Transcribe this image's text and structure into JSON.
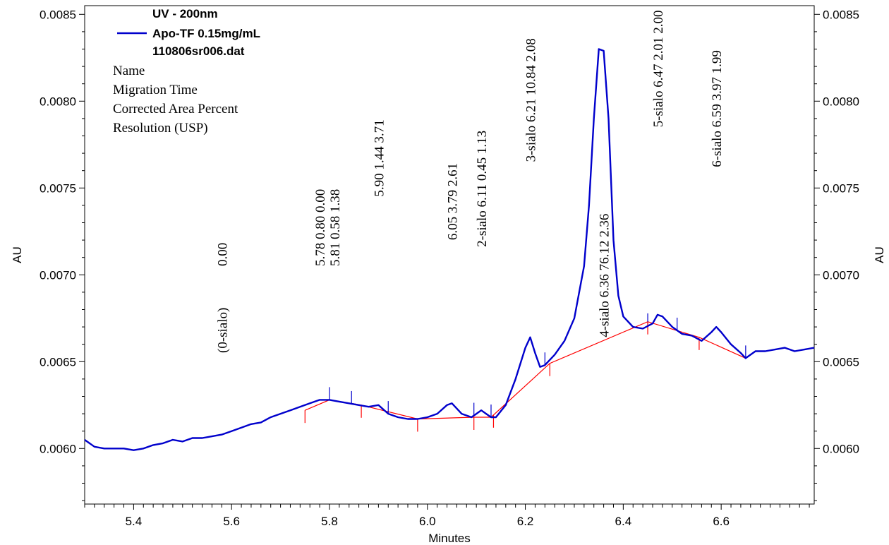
{
  "chart_data": {
    "type": "line",
    "xlabel": "Minutes",
    "ylabel_left": "AU",
    "ylabel_right": "AU",
    "xlim": [
      5.3,
      6.79
    ],
    "ylim": [
      0.00568,
      0.00855
    ],
    "x_ticks": [
      5.4,
      5.6,
      5.8,
      6.0,
      6.2,
      6.4,
      6.6
    ],
    "x_tick_labels": [
      "5.4",
      "5.6",
      "5.8",
      "6.0",
      "6.2",
      "6.4",
      "6.6"
    ],
    "y_ticks": [
      0.006,
      0.0065,
      0.007,
      0.0075,
      0.008,
      0.0085
    ],
    "y_tick_labels": [
      "0.0060",
      "0.0065",
      "0.0070",
      "0.0075",
      "0.0080",
      "0.0085"
    ],
    "legend": {
      "title": "UV - 200nm",
      "series_name": "Apo-TF 0.15mg/mL",
      "file": "110806sr006.dat",
      "fields": [
        "Name",
        "Migration Time",
        "Corrected Area Percent",
        "Resolution (USP)"
      ]
    },
    "series": [
      {
        "name": "Apo-TF 0.15mg/mL",
        "color": "#0000cc",
        "x": [
          5.3,
          5.32,
          5.34,
          5.36,
          5.38,
          5.4,
          5.42,
          5.44,
          5.46,
          5.48,
          5.5,
          5.52,
          5.54,
          5.56,
          5.58,
          5.6,
          5.62,
          5.64,
          5.66,
          5.68,
          5.7,
          5.72,
          5.74,
          5.76,
          5.78,
          5.8,
          5.82,
          5.84,
          5.86,
          5.88,
          5.9,
          5.92,
          5.94,
          5.96,
          5.98,
          6.0,
          6.02,
          6.04,
          6.05,
          6.07,
          6.09,
          6.1,
          6.11,
          6.12,
          6.13,
          6.14,
          6.16,
          6.18,
          6.2,
          6.21,
          6.22,
          6.23,
          6.24,
          6.26,
          6.28,
          6.3,
          6.32,
          6.33,
          6.34,
          6.35,
          6.36,
          6.37,
          6.38,
          6.39,
          6.4,
          6.42,
          6.44,
          6.46,
          6.47,
          6.48,
          6.5,
          6.52,
          6.54,
          6.56,
          6.58,
          6.59,
          6.6,
          6.62,
          6.64,
          6.65,
          6.67,
          6.69,
          6.71,
          6.73,
          6.75,
          6.77,
          6.79
        ],
        "y": [
          0.00605,
          0.00601,
          0.006,
          0.006,
          0.006,
          0.00599,
          0.006,
          0.00602,
          0.00603,
          0.00605,
          0.00604,
          0.00606,
          0.00606,
          0.00607,
          0.00608,
          0.0061,
          0.00612,
          0.00614,
          0.00615,
          0.00618,
          0.0062,
          0.00622,
          0.00624,
          0.00626,
          0.00628,
          0.00628,
          0.00627,
          0.00626,
          0.00625,
          0.00624,
          0.00625,
          0.0062,
          0.00618,
          0.00617,
          0.00617,
          0.00618,
          0.0062,
          0.00625,
          0.00626,
          0.0062,
          0.00618,
          0.0062,
          0.00622,
          0.0062,
          0.00618,
          0.00618,
          0.00625,
          0.0064,
          0.00658,
          0.00664,
          0.00655,
          0.00647,
          0.00648,
          0.00654,
          0.00662,
          0.00675,
          0.00705,
          0.0074,
          0.0079,
          0.0083,
          0.00829,
          0.0079,
          0.0072,
          0.00688,
          0.00676,
          0.0067,
          0.00669,
          0.00672,
          0.00677,
          0.00676,
          0.0067,
          0.00666,
          0.00665,
          0.00662,
          0.00667,
          0.0067,
          0.00667,
          0.0066,
          0.00655,
          0.00652,
          0.00656,
          0.00656,
          0.00657,
          0.00658,
          0.00656,
          0.00657,
          0.00658
        ]
      }
    ],
    "baseline": {
      "color": "#ff0000",
      "x": [
        5.75,
        5.8,
        5.865,
        5.98,
        6.095,
        6.13,
        6.25,
        6.45,
        6.555,
        6.65
      ],
      "y": [
        0.00622,
        0.00628,
        0.00625,
        0.00617,
        0.00618,
        0.00618,
        0.00649,
        0.00673,
        0.00664,
        0.00652
      ]
    },
    "peak_markers": {
      "blue": [
        5.8,
        5.845,
        5.92,
        6.095,
        6.13,
        6.24,
        6.45,
        6.51,
        6.65
      ],
      "red": [
        5.75,
        5.865,
        5.98,
        6.095,
        6.135,
        6.25,
        6.45,
        6.555
      ]
    },
    "annotations": [
      {
        "text": "0.00",
        "x": 5.58,
        "anchor_y": 0.00705,
        "color": "#000000"
      },
      {
        "text": "(0-sialo)",
        "x": 5.58,
        "anchor_y": 0.00655,
        "color": "#e000e0"
      },
      {
        "text": "5.78  0.80  0.00",
        "x": 5.78,
        "anchor_y": 0.00705,
        "color": "#000000"
      },
      {
        "text": "5.81  0.58  1.38",
        "x": 5.81,
        "anchor_y": 0.00705,
        "color": "#000000"
      },
      {
        "text": "5.90  1.44  3.71",
        "x": 5.9,
        "anchor_y": 0.00745,
        "color": "#000000"
      },
      {
        "text": "6.05  3.79  2.61",
        "x": 6.05,
        "anchor_y": 0.0072,
        "color": "#000000"
      },
      {
        "text": "2-sialo  6.11  0.45  1.13",
        "x": 6.11,
        "anchor_y": 0.00716,
        "color": "#000000"
      },
      {
        "text": "3-sialo  6.21  10.84  2.08",
        "x": 6.21,
        "anchor_y": 0.00765,
        "color": "#000000"
      },
      {
        "text": "4-sialo  6.36  76.12  2.36",
        "x": 6.36,
        "anchor_y": 0.00664,
        "color": "#000000"
      },
      {
        "text": "5-sialo  6.47  2.01  2.00",
        "x": 6.47,
        "anchor_y": 0.00785,
        "color": "#000000"
      },
      {
        "text": "6-sialo  6.59  3.97  1.99",
        "x": 6.59,
        "anchor_y": 0.00762,
        "color": "#000000"
      }
    ]
  }
}
